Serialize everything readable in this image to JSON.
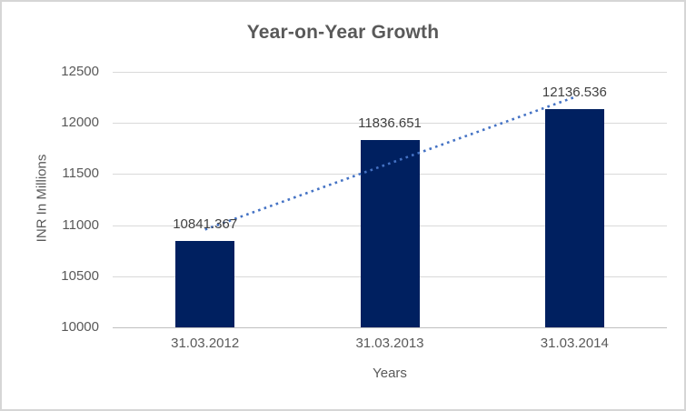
{
  "chart_data": {
    "type": "bar",
    "title": "Year-on-Year Growth",
    "xlabel": "Years",
    "ylabel": "INR In Millions",
    "categories": [
      "31.03.2012",
      "31.03.2013",
      "31.03.2014"
    ],
    "values": [
      10841.367,
      11836.651,
      12136.536
    ],
    "data_labels": [
      "10841.367",
      "11836.651",
      "12136.536"
    ],
    "ylim": [
      10000,
      12500
    ],
    "yticks": [
      10000,
      10500,
      11000,
      11500,
      12000,
      12500
    ],
    "grid": true,
    "legend": "none",
    "trendline": {
      "type": "linear",
      "style": "dotted",
      "color": "#4472C4"
    },
    "colors": {
      "bar": "#002060",
      "gridline": "#d9d9d9",
      "axis_line": "#bfbfbf",
      "title_text": "#595959",
      "tick_text": "#595959",
      "data_label_text": "#404040",
      "border": "#d6d6d6",
      "background": "#ffffff"
    }
  }
}
